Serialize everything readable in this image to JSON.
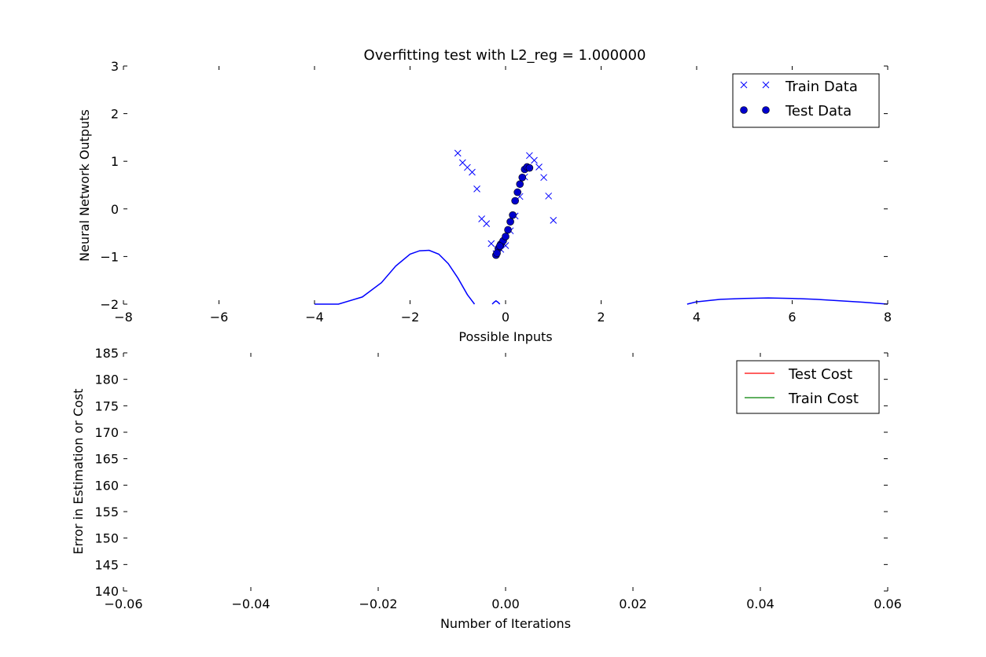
{
  "chart_data": [
    {
      "type": "scatter",
      "title": "Overfitting test with L2_reg = 1.000000",
      "xlabel": "Possible Inputs",
      "ylabel": "Neural Network Outputs",
      "xlim": [
        -8,
        8
      ],
      "ylim": [
        -2,
        3
      ],
      "xticks": [
        -8,
        -6,
        -4,
        -2,
        0,
        2,
        4,
        6,
        8
      ],
      "yticks": [
        -2,
        -1,
        0,
        1,
        2,
        3
      ],
      "xtick_labels": [
        "−8",
        "−6",
        "−4",
        "−2",
        "0",
        "2",
        "4",
        "6",
        "8"
      ],
      "ytick_labels": [
        "−2",
        "−1",
        "0",
        "1",
        "2",
        "3"
      ],
      "grid": false,
      "legend_position": "top-right",
      "series": [
        {
          "name": "Train Data",
          "kind": "scatter",
          "marker": "x",
          "color": "#0000ff",
          "x": [
            -1.0,
            -0.9,
            -0.8,
            -0.7,
            -0.6,
            -0.5,
            -0.4,
            -0.3,
            -0.2,
            -0.1,
            0.0,
            0.1,
            0.2,
            0.3,
            0.4,
            0.5,
            0.6,
            0.7,
            0.8,
            0.9,
            1.0
          ],
          "y": [
            1.17,
            0.97,
            0.87,
            0.77,
            0.42,
            -0.21,
            -0.31,
            -0.73,
            -0.94,
            -0.85,
            -0.77,
            -0.46,
            -0.15,
            0.26,
            0.67,
            1.12,
            1.02,
            0.88,
            0.66,
            0.27,
            -0.24
          ]
        },
        {
          "name": "Test Data",
          "kind": "scatter",
          "marker": "o",
          "color": "#0000cc",
          "x": [
            -0.2,
            -0.15,
            -0.1,
            -0.05,
            0.0,
            0.05,
            0.1,
            0.15,
            0.2,
            0.25,
            0.3,
            0.35,
            0.4,
            0.45,
            0.5,
            -0.18,
            -0.12
          ],
          "y": [
            -0.97,
            -0.83,
            -0.74,
            -0.67,
            -0.58,
            -0.44,
            -0.27,
            -0.13,
            0.17,
            0.35,
            0.52,
            0.66,
            0.83,
            0.88,
            0.86,
            -0.93,
            -0.78
          ]
        },
        {
          "name": "",
          "kind": "line",
          "color": "#0000ff",
          "segments": [
            {
              "x": [
                -4.0,
                -3.5,
                -3.0,
                -2.6,
                -2.3,
                -2.0,
                -1.8,
                -1.6,
                -1.4,
                -1.2,
                -1.0,
                -0.8,
                -0.65
              ],
              "y": [
                -2.1,
                -2.0,
                -1.85,
                -1.55,
                -1.2,
                -0.95,
                -0.88,
                -0.87,
                -0.95,
                -1.15,
                -1.45,
                -1.8,
                -2.02
              ]
            },
            {
              "x": [
                -0.28,
                -0.24,
                -0.2,
                -0.16,
                -0.12
              ],
              "y": [
                -2.02,
                -1.96,
                -1.93,
                -1.96,
                -2.02
              ]
            },
            {
              "x": [
                3.8,
                4.0,
                4.5,
                5.0,
                5.5,
                6.0,
                6.5,
                7.0,
                7.5,
                8.0
              ],
              "y": [
                -2.0,
                -1.95,
                -1.9,
                -1.88,
                -1.87,
                -1.88,
                -1.9,
                -1.93,
                -1.96,
                -2.0
              ]
            }
          ]
        }
      ]
    },
    {
      "type": "line",
      "title": "",
      "xlabel": "Number of Iterations",
      "ylabel": "Error in Estimation or Cost",
      "xlim": [
        -0.06,
        0.06
      ],
      "ylim": [
        140,
        185
      ],
      "xticks": [
        -0.06,
        -0.04,
        -0.02,
        0.0,
        0.02,
        0.04,
        0.06
      ],
      "yticks": [
        140,
        145,
        150,
        155,
        160,
        165,
        170,
        175,
        180,
        185
      ],
      "xtick_labels": [
        "−0.06",
        "−0.04",
        "−0.02",
        "0.00",
        "0.02",
        "0.04",
        "0.06"
      ],
      "ytick_labels": [
        "140",
        "145",
        "150",
        "155",
        "160",
        "165",
        "170",
        "175",
        "180",
        "185"
      ],
      "grid": false,
      "legend_position": "top-right",
      "series": [
        {
          "name": "Test Cost",
          "color": "#ff0000",
          "x": [],
          "y": []
        },
        {
          "name": "Train Cost",
          "color": "#008000",
          "x": [],
          "y": []
        }
      ]
    }
  ]
}
